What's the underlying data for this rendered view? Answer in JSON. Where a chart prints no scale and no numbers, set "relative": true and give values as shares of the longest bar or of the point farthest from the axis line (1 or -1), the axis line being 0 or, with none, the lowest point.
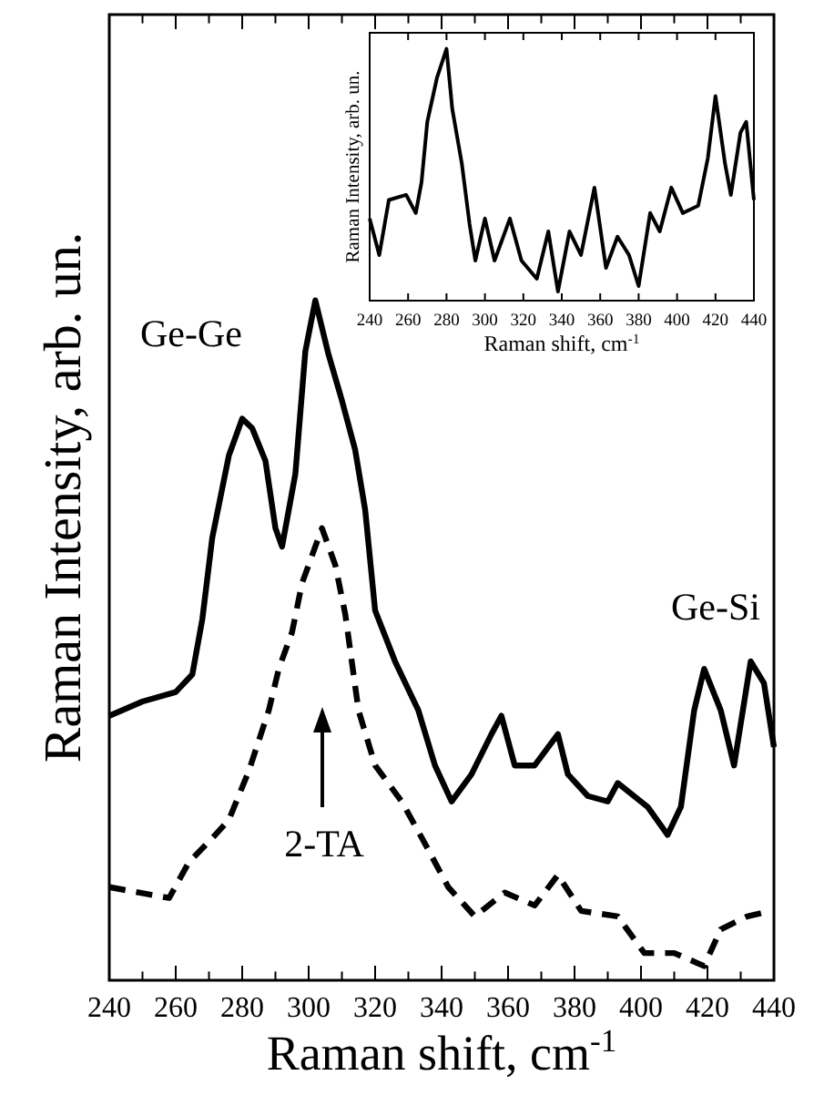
{
  "chart_data": [
    {
      "type": "line",
      "relative": true,
      "xlabel": "Raman shift, cm$^{-1}$",
      "ylabel": "Raman Intensity, arb. un.",
      "xlim": [
        240,
        440
      ],
      "xticks": [
        240,
        {
          "value": 250,
          "label": null
        },
        260,
        {
          "value": 270,
          "label": null
        },
        280,
        {
          "value": 290,
          "label": null
        },
        300,
        {
          "value": 310,
          "label": null
        },
        320,
        {
          "value": 330,
          "label": null
        },
        340,
        {
          "value": 350,
          "label": null
        },
        360,
        {
          "value": 370,
          "label": null
        },
        380,
        {
          "value": 390,
          "label": null
        },
        400,
        {
          "value": 410,
          "label": null
        },
        420,
        {
          "value": 430,
          "label": null
        },
        440
      ],
      "tick_labels": "x",
      "grid": false,
      "legend": false,
      "annotations": [
        "Ge-Ge",
        "Ge-Si",
        "2-TA"
      ],
      "series": [
        {
          "color": "#000000",
          "line_style": "solid",
          "x": [
            240,
            250,
            260,
            265,
            268,
            271,
            276,
            280,
            283,
            287,
            290,
            292,
            296,
            299,
            302,
            306,
            310,
            314,
            317,
            320,
            326,
            333,
            338,
            343,
            349,
            355,
            358,
            362,
            368,
            375,
            378,
            384,
            390,
            393,
            402,
            408,
            412,
            416,
            419,
            424,
            428,
            433,
            437,
            440
          ],
          "values": [
            0.389,
            0.41,
            0.424,
            0.45,
            0.531,
            0.651,
            0.772,
            0.826,
            0.812,
            0.764,
            0.665,
            0.638,
            0.745,
            0.925,
            1,
            0.92,
            0.853,
            0.78,
            0.692,
            0.544,
            0.469,
            0.397,
            0.316,
            0.263,
            0.303,
            0.362,
            0.389,
            0.316,
            0.316,
            0.362,
            0.303,
            0.271,
            0.263,
            0.29,
            0.255,
            0.214,
            0.255,
            0.397,
            0.458,
            0.397,
            0.316,
            0.469,
            0.437,
            0.343
          ]
        },
        {
          "color": "#000000",
          "line_style": "dashed",
          "x": [
            240,
            258,
            264,
            271,
            276,
            282,
            288,
            291,
            295,
            298,
            302,
            304,
            308,
            311,
            315,
            320,
            328,
            335,
            342,
            350,
            359,
            368,
            375,
            382,
            393,
            401,
            410,
            419,
            424,
            432,
            439
          ],
          "values": [
            0.137,
            0.121,
            0.174,
            0.209,
            0.236,
            0.308,
            0.397,
            0.458,
            0.512,
            0.584,
            0.638,
            0.665,
            0.611,
            0.539,
            0.397,
            0.316,
            0.263,
            0.201,
            0.137,
            0.094,
            0.129,
            0.11,
            0.155,
            0.102,
            0.094,
            0.04,
            0.04,
            0.021,
            0.075,
            0.094,
            0.102
          ]
        }
      ]
    },
    {
      "type": "line",
      "relative": true,
      "xlabel": "Raman shift, cm$^{-1}$",
      "ylabel": "Raman Intensity, arb. un.",
      "xlim": [
        240,
        440
      ],
      "xticks": [
        240,
        260,
        280,
        300,
        320,
        340,
        360,
        380,
        400,
        420,
        440
      ],
      "tick_labels": "x",
      "grid": false,
      "legend": false,
      "series": [
        {
          "color": "#000000",
          "line_style": "solid",
          "x": [
            240,
            245,
            250,
            259,
            264,
            267,
            270,
            275,
            280,
            283,
            288,
            292,
            295,
            300,
            305,
            313,
            319,
            327,
            333,
            338,
            344,
            350,
            357,
            363,
            369,
            375,
            380,
            386,
            391,
            397,
            403,
            411,
            416,
            420,
            425,
            428,
            433,
            436,
            440
          ],
          "values": [
            0.326,
            0.181,
            0.4,
            0.42,
            0.348,
            0.471,
            0.71,
            0.884,
            1,
            0.761,
            0.543,
            0.304,
            0.159,
            0.326,
            0.159,
            0.326,
            0.159,
            0.087,
            0.275,
            0.036,
            0.275,
            0.181,
            0.449,
            0.13,
            0.254,
            0.181,
            0.058,
            0.348,
            0.275,
            0.449,
            0.348,
            0.377,
            0.565,
            0.812,
            0.543,
            0.42,
            0.667,
            0.71,
            0.4
          ]
        }
      ]
    }
  ]
}
